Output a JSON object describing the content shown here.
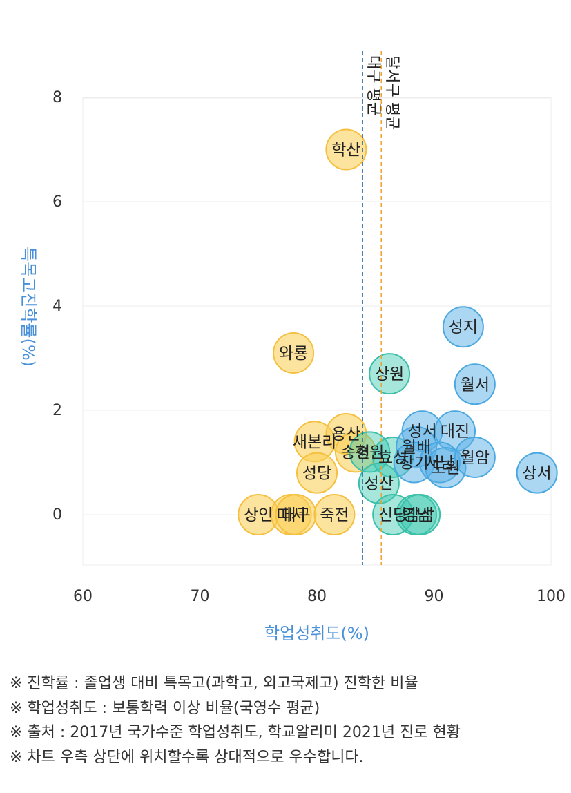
{
  "chart_data": {
    "type": "scatter",
    "title": "",
    "xlabel": "학업성취도(%)",
    "ylabel": "특목고진학률(%)",
    "xlim": [
      60,
      100
    ],
    "ylim": [
      -1,
      8
    ],
    "x_ticks": [
      60,
      70,
      80,
      90,
      100
    ],
    "y_ticks": [
      0,
      2,
      4,
      6,
      8
    ],
    "grid": true,
    "label_color": "#4a90d9",
    "reference_lines": [
      {
        "label": "대구 평균",
        "x": 83.9,
        "color": "#2e6e9e"
      },
      {
        "label": "달서구 평균",
        "x": 85.5,
        "color": "#f0a030"
      }
    ],
    "groups": [
      {
        "color": "#f5c040",
        "fill": "rgba(250,205,80,0.55)"
      },
      {
        "color": "#3cbfa8",
        "fill": "rgba(60,200,175,0.45)"
      },
      {
        "color": "#4aa8e0",
        "fill": "rgba(90,175,230,0.50)"
      }
    ],
    "points": [
      {
        "name": "학산",
        "x": 82.5,
        "y": 7.0,
        "group": 0
      },
      {
        "name": "와룡",
        "x": 78.0,
        "y": 3.1,
        "group": 0
      },
      {
        "name": "새본리",
        "x": 79.8,
        "y": 1.4,
        "group": 0
      },
      {
        "name": "용산",
        "x": 82.5,
        "y": 1.55,
        "group": 0
      },
      {
        "name": "송현",
        "x": 83.3,
        "y": 1.2,
        "group": 0
      },
      {
        "name": "성당",
        "x": 80.0,
        "y": 0.8,
        "group": 0
      },
      {
        "name": "상인",
        "x": 75.0,
        "y": 0.0,
        "group": 0
      },
      {
        "name": "대서",
        "x": 77.8,
        "y": 0.0,
        "group": 0
      },
      {
        "name": "대구",
        "x": 78.2,
        "y": 0.0,
        "group": 0
      },
      {
        "name": "죽전",
        "x": 81.5,
        "y": 0.0,
        "group": 0
      },
      {
        "name": "상원",
        "x": 86.2,
        "y": 2.7,
        "group": 1
      },
      {
        "name": "경원",
        "x": 84.5,
        "y": 1.2,
        "group": 1
      },
      {
        "name": "효성",
        "x": 86.5,
        "y": 1.1,
        "group": 1
      },
      {
        "name": "성산",
        "x": 85.3,
        "y": 0.6,
        "group": 1
      },
      {
        "name": "신당",
        "x": 86.5,
        "y": 0.0,
        "group": 1
      },
      {
        "name": "영남",
        "x": 88.5,
        "y": 0.0,
        "group": 1
      },
      {
        "name": "감삼",
        "x": 88.8,
        "y": 0.0,
        "group": 1
      },
      {
        "name": "성지",
        "x": 92.5,
        "y": 3.6,
        "group": 2
      },
      {
        "name": "월서",
        "x": 93.5,
        "y": 2.5,
        "group": 2
      },
      {
        "name": "성서",
        "x": 89.0,
        "y": 1.6,
        "group": 2
      },
      {
        "name": "대진",
        "x": 91.8,
        "y": 1.6,
        "group": 2
      },
      {
        "name": "월배",
        "x": 88.5,
        "y": 1.3,
        "group": 2
      },
      {
        "name": "장기",
        "x": 88.3,
        "y": 1.0,
        "group": 2
      },
      {
        "name": "서남",
        "x": 90.5,
        "y": 1.0,
        "group": 2
      },
      {
        "name": "도원",
        "x": 91.0,
        "y": 0.9,
        "group": 2
      },
      {
        "name": "월암",
        "x": 93.5,
        "y": 1.1,
        "group": 2
      },
      {
        "name": "상서",
        "x": 98.8,
        "y": 0.8,
        "group": 2
      }
    ]
  },
  "notes": [
    "※ 진학률 : 졸업생 대비 특목고(과학고, 외고국제고) 진학한 비율",
    "※ 학업성취도 : 보통학력 이상 비율(국영수 평균)",
    "※ 출처 : 2017년 국가수준 학업성취도, 학교알리미 2021년 진로 현황",
    "※ 차트 우측 상단에 위치할수록 상대적으로 우수합니다."
  ]
}
